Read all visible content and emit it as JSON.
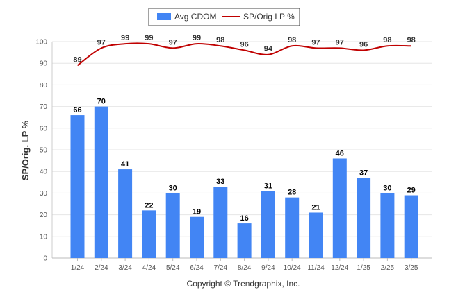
{
  "chart_data": {
    "type": "bar",
    "ylabel": "SP/Orig. LP %",
    "ylim": [
      0,
      100
    ],
    "yticks": [
      0,
      10,
      20,
      30,
      40,
      50,
      60,
      70,
      80,
      90,
      100
    ],
    "grid": true,
    "legend_position": "top-center",
    "categories": [
      "1/24",
      "2/24",
      "3/24",
      "4/24",
      "5/24",
      "6/24",
      "7/24",
      "8/24",
      "9/24",
      "10/24",
      "11/24",
      "12/24",
      "1/25",
      "2/25",
      "3/25"
    ],
    "series": [
      {
        "name": "Avg CDOM",
        "type": "bar",
        "color": "#4285f4",
        "values": [
          66,
          70,
          41,
          22,
          30,
          19,
          33,
          16,
          31,
          28,
          21,
          46,
          37,
          30,
          29
        ]
      },
      {
        "name": "SP/Orig LP %",
        "type": "line",
        "color": "#c00000",
        "values": [
          89,
          97,
          99,
          99,
          97,
          99,
          98,
          96,
          94,
          98,
          97,
          97,
          96,
          98,
          98
        ]
      }
    ]
  },
  "footer": {
    "copyright": "Copyright © Trendgraphix, Inc."
  }
}
